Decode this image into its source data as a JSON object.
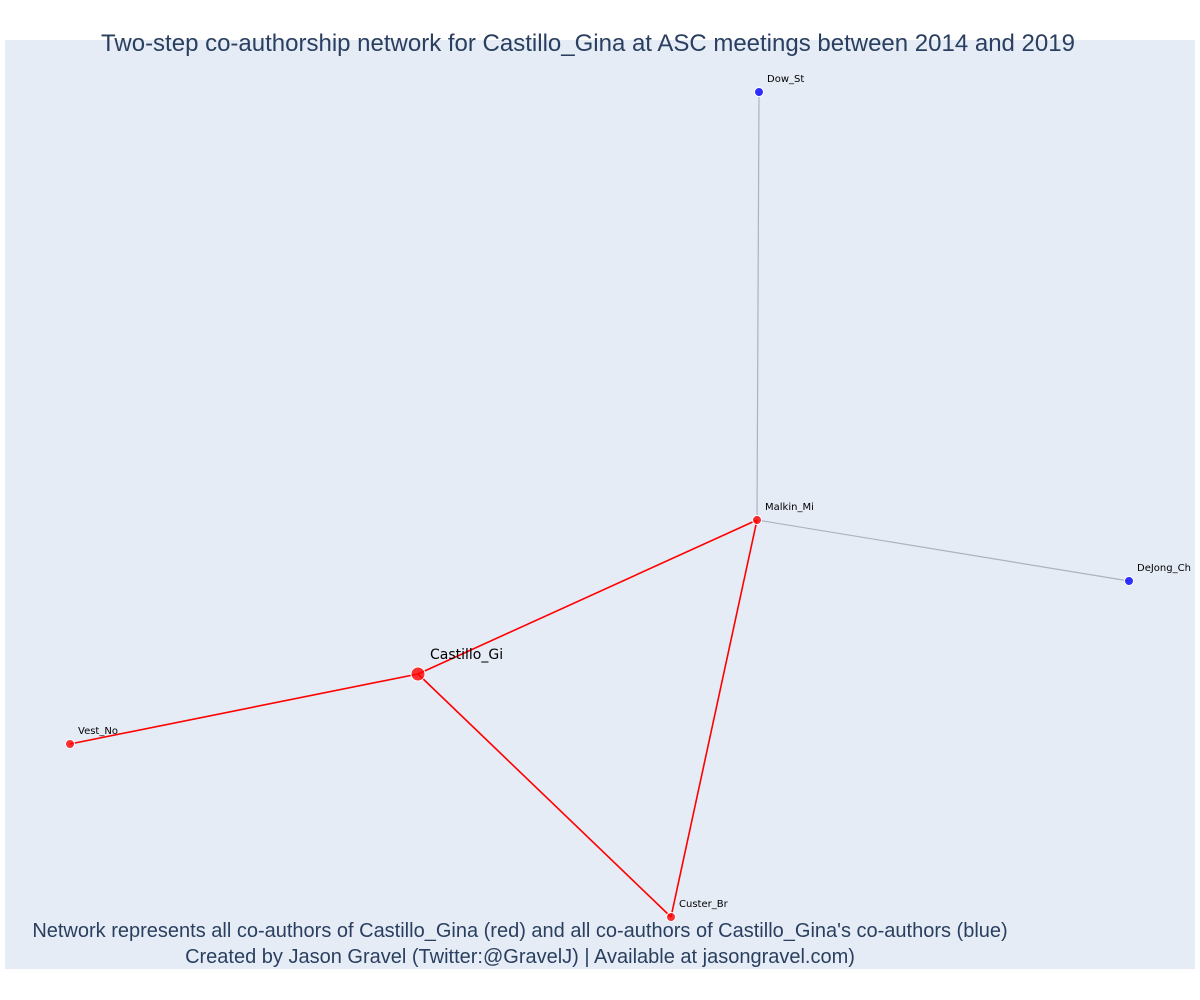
{
  "title": "Two-step co-authorship network for Castillo_Gina at ASC meetings between 2014 and 2019",
  "caption": {
    "line1": "Network represents all co-authors of Castillo_Gina (red) and all co-authors of Castillo_Gina's co-authors (blue)",
    "line2": "Created by Jason Gravel (Twitter:@GravelJ) | Available at jasongravel.com)"
  },
  "colors": {
    "background": "#e5ecf6",
    "first_degree": "#ff0000",
    "second_degree": "#0000ff",
    "edge_first": "#ff0000",
    "edge_second": "#b0b0c0",
    "text": "#2a3f5f"
  },
  "network": {
    "nodes": [
      {
        "id": "castillo",
        "label": "Castillo_Gi",
        "group": "ego"
      },
      {
        "id": "malkin",
        "label": "Malkin_Mi",
        "group": "first"
      },
      {
        "id": "custer",
        "label": "Custer_Br",
        "group": "first"
      },
      {
        "id": "vest",
        "label": "Vest_No",
        "group": "first"
      },
      {
        "id": "dow",
        "label": "Dow_St",
        "group": "second"
      },
      {
        "id": "dejong",
        "label": "DeJong_Ch",
        "group": "second"
      }
    ],
    "edges": [
      {
        "source": "castillo",
        "target": "malkin",
        "type": "first"
      },
      {
        "source": "castillo",
        "target": "custer",
        "type": "first"
      },
      {
        "source": "castillo",
        "target": "vest",
        "type": "first"
      },
      {
        "source": "malkin",
        "target": "custer",
        "type": "first"
      },
      {
        "source": "malkin",
        "target": "dow",
        "type": "second"
      },
      {
        "source": "malkin",
        "target": "dejong",
        "type": "second"
      }
    ]
  }
}
